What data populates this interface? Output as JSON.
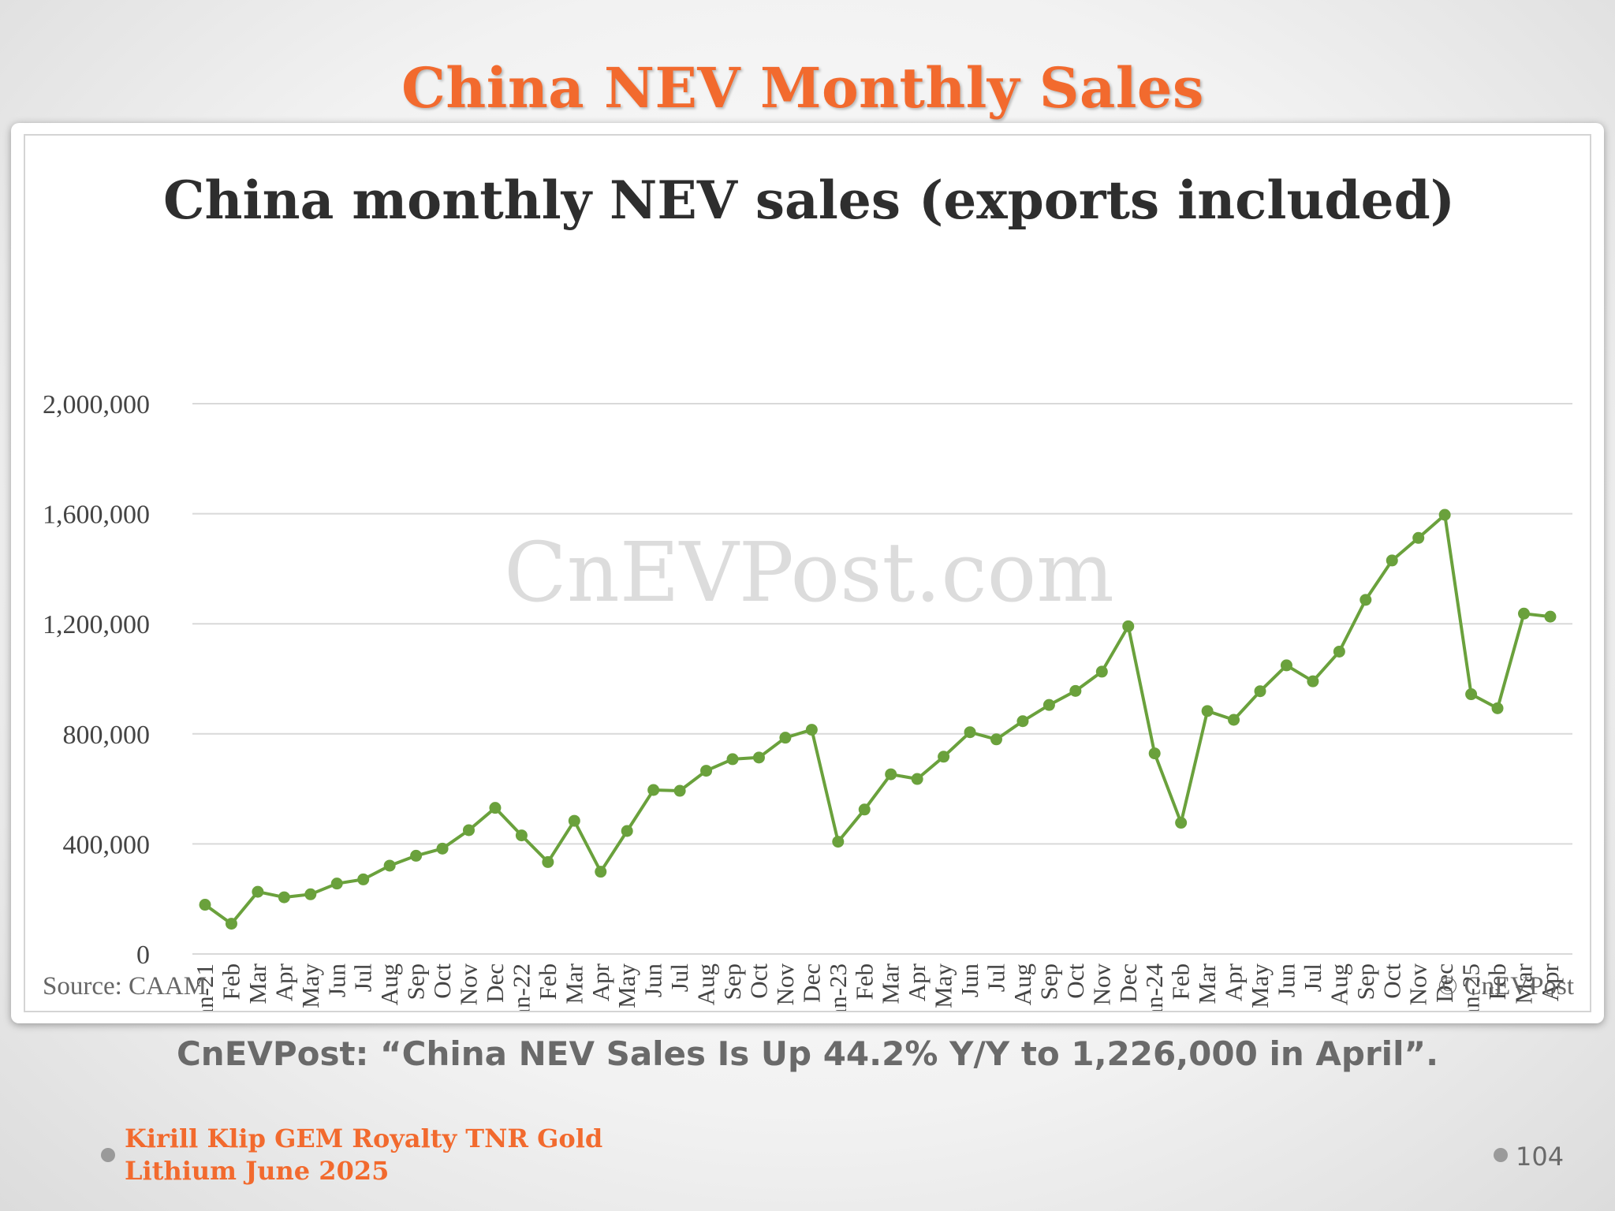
{
  "slide": {
    "title": "China NEV Monthly Sales",
    "caption": "CnEVPost: “China NEV Sales Is Up 44.2% Y/Y to 1,226,000 in April”.",
    "footer_line1": "Kirill Klip GEM Royalty TNR Gold",
    "footer_line2": "Lithium June 2025",
    "page_number": "104"
  },
  "colors": {
    "title": "#f26a2e",
    "line": "#6aa13c",
    "grid": "#d9d9d9",
    "watermark": "#dcdcdc",
    "caption": "#6a6a6a"
  },
  "chart_data": {
    "type": "line",
    "title": "China monthly NEV sales (exports included)",
    "source": "Source: CAAM",
    "copyright": "© CnEVPost",
    "watermark": "CnEVPost.com",
    "ylim": [
      0,
      2000000
    ],
    "yticks": [
      "0",
      "400,000",
      "800,000",
      "1,200,000",
      "1,600,000",
      "2,000,000"
    ],
    "categories": [
      "Jan-21",
      "Feb",
      "Mar",
      "Apr",
      "May",
      "Jun",
      "Jul",
      "Aug",
      "Sep",
      "Oct",
      "Nov",
      "Dec",
      "Jan-22",
      "Feb",
      "Mar",
      "Apr",
      "May",
      "Jun",
      "Jul",
      "Aug",
      "Sep",
      "Oct",
      "Nov",
      "Dec",
      "Jan-23",
      "Feb",
      "Mar",
      "Apr",
      "May",
      "Jun",
      "Jul",
      "Aug",
      "Sep",
      "Oct",
      "Nov",
      "Dec",
      "Jan-24",
      "Feb",
      "Mar",
      "Apr",
      "May",
      "Jun",
      "Jul",
      "Aug",
      "Sep",
      "Oct",
      "Nov",
      "Dec",
      "Jan-25",
      "Feb",
      "Mar",
      "Apr"
    ],
    "values": [
      179000,
      110000,
      226000,
      206000,
      217000,
      256000,
      271000,
      321000,
      357000,
      383000,
      450000,
      531000,
      431000,
      334000,
      484000,
      299000,
      447000,
      596000,
      593000,
      666000,
      708000,
      714000,
      786000,
      815000,
      408000,
      525000,
      653000,
      636000,
      717000,
      806000,
      780000,
      846000,
      905000,
      956000,
      1026000,
      1191000,
      729000,
      477000,
      883000,
      851000,
      955000,
      1049000,
      991000,
      1099000,
      1287000,
      1430000,
      1512000,
      1596000,
      944000,
      893000,
      1237000,
      1226000
    ]
  }
}
